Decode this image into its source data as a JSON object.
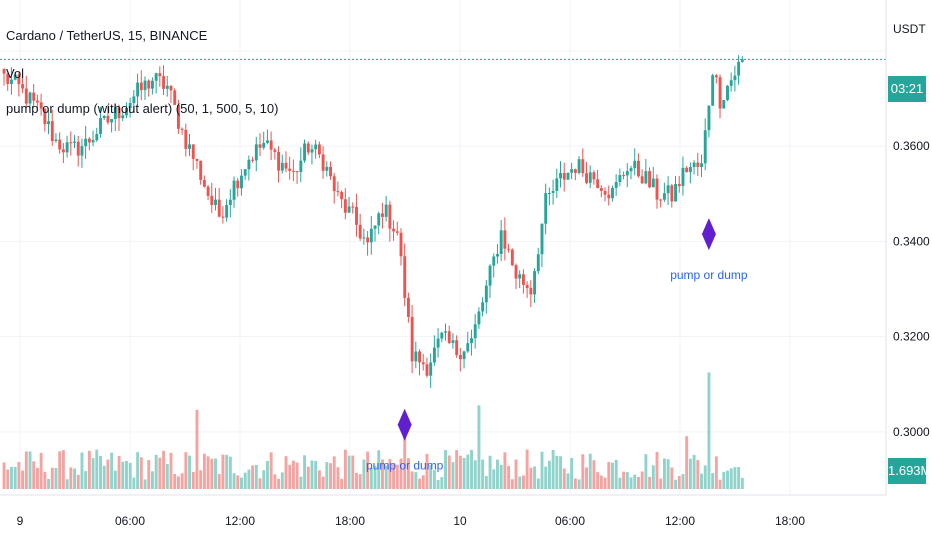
{
  "legend": {
    "symbol": "Cardano / TetherUS, 15, BINANCE",
    "volume_label": "Vol",
    "indicator": "pump or dump (without alert)  (50, 1, 500, 5, 10)"
  },
  "price_axis": {
    "currency": "USDT",
    "countdown": "03:21",
    "volume_badge": "1.693M",
    "ticks": [
      "0.3600",
      "0.3400",
      "0.3200",
      "0.3000"
    ]
  },
  "time_axis": {
    "ticks": [
      "9",
      "06:00",
      "12:00",
      "18:00",
      "10",
      "06:00",
      "12:00",
      "18:00"
    ]
  },
  "colors": {
    "up": "#26a69a",
    "down": "#ef5350",
    "up_volume": "#8fd3cb",
    "down_volume": "#f5a3a1",
    "marker": "#6020d0",
    "marker_text": "#2962ff",
    "grid": "#f0f3fa",
    "last_price_line": "#26a69a"
  },
  "chart_data": {
    "type": "candlestick",
    "title": "Cardano / TetherUS, 15, BINANCE",
    "interval": "15",
    "bar_count": 200,
    "ylim": [
      0.288,
      0.385
    ],
    "yticks": [
      0.36,
      0.34,
      0.32,
      0.3
    ],
    "xticks": [
      "9",
      "06:00",
      "12:00",
      "18:00",
      "10",
      "06:00",
      "12:00",
      "18:00"
    ],
    "close_path": [
      [
        0,
        0.3745
      ],
      [
        4,
        0.3722
      ],
      [
        10,
        0.3668
      ],
      [
        14,
        0.361
      ],
      [
        18,
        0.359
      ],
      [
        22,
        0.3605
      ],
      [
        26,
        0.364
      ],
      [
        32,
        0.368
      ],
      [
        36,
        0.3712
      ],
      [
        40,
        0.374
      ],
      [
        44,
        0.3725
      ],
      [
        48,
        0.363
      ],
      [
        52,
        0.356
      ],
      [
        56,
        0.348
      ],
      [
        58,
        0.3455
      ],
      [
        62,
        0.352
      ],
      [
        66,
        0.3575
      ],
      [
        70,
        0.3605
      ],
      [
        74,
        0.357
      ],
      [
        78,
        0.354
      ],
      [
        82,
        0.36
      ],
      [
        86,
        0.357
      ],
      [
        90,
        0.349
      ],
      [
        94,
        0.345
      ],
      [
        98,
        0.339
      ],
      [
        102,
        0.347
      ],
      [
        106,
        0.342
      ],
      [
        110,
        0.316
      ],
      [
        114,
        0.314
      ],
      [
        118,
        0.3195
      ],
      [
        122,
        0.317
      ],
      [
        126,
        0.319
      ],
      [
        130,
        0.33
      ],
      [
        134,
        0.342
      ],
      [
        138,
        0.333
      ],
      [
        142,
        0.33
      ],
      [
        146,
        0.348
      ],
      [
        150,
        0.353
      ],
      [
        154,
        0.356
      ],
      [
        160,
        0.353
      ],
      [
        164,
        0.35
      ],
      [
        168,
        0.356
      ],
      [
        172,
        0.354
      ],
      [
        176,
        0.35
      ],
      [
        180,
        0.3495
      ],
      [
        184,
        0.3555
      ],
      [
        188,
        0.3555
      ],
      [
        191,
        0.3765
      ],
      [
        193,
        0.37
      ],
      [
        196,
        0.374
      ],
      [
        199,
        0.3782
      ]
    ],
    "last_price": 0.3782,
    "volume_spikes": [
      [
        52,
        3.6
      ],
      [
        108,
        3.3
      ],
      [
        128,
        3.8
      ],
      [
        184,
        2.4
      ],
      [
        190,
        5.3
      ]
    ],
    "markers": [
      {
        "bar": 108,
        "label": "pump or dump",
        "position": "below"
      },
      {
        "bar": 190,
        "label": "pump or dump",
        "position": "below"
      }
    ]
  }
}
